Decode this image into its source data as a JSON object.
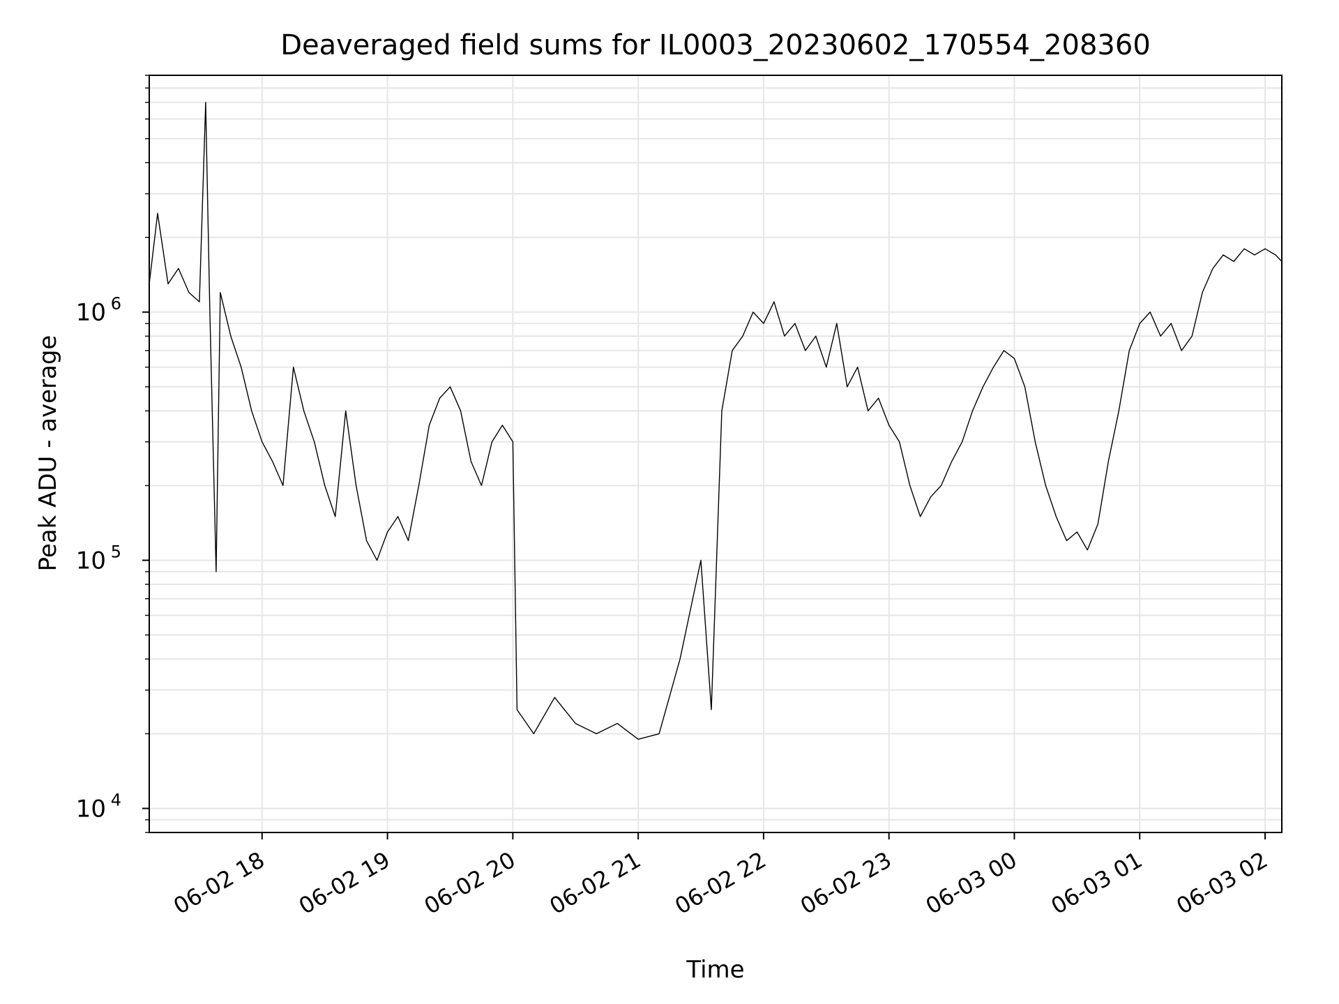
{
  "chart_data": {
    "type": "line",
    "title": "Deaveraged field sums for IL0003_20230602_170554_208360",
    "xlabel": "Time",
    "ylabel": "Peak ADU - average",
    "yscale": "log",
    "ylim": [
      8000,
      9000000
    ],
    "xlim": [
      "2023-06-02 17:06",
      "2023-06-03 02:08"
    ],
    "grid": true,
    "x_ticks": [
      "06-02 18",
      "06-02 19",
      "06-02 20",
      "06-02 21",
      "06-02 22",
      "06-02 23",
      "06-03 00",
      "06-03 01",
      "06-03 02"
    ],
    "y_ticks": [
      {
        "base": "10",
        "exp": "4",
        "value": 10000
      },
      {
        "base": "10",
        "exp": "5",
        "value": 100000
      },
      {
        "base": "10",
        "exp": "6",
        "value": 1000000
      }
    ],
    "line_color": "#000000",
    "grid_color": "#e6e6e6",
    "series": [
      {
        "points": [
          [
            "2023-06-02 17:06",
            1300000
          ],
          [
            "2023-06-02 17:10",
            2500000
          ],
          [
            "2023-06-02 17:15",
            1300000
          ],
          [
            "2023-06-02 17:20",
            1500000
          ],
          [
            "2023-06-02 17:25",
            1200000
          ],
          [
            "2023-06-02 17:30",
            1100000
          ],
          [
            "2023-06-02 17:33",
            7000000
          ],
          [
            "2023-06-02 17:35",
            1000000
          ],
          [
            "2023-06-02 17:38",
            90000
          ],
          [
            "2023-06-02 17:40",
            1200000
          ],
          [
            "2023-06-02 17:45",
            800000
          ],
          [
            "2023-06-02 17:50",
            600000
          ],
          [
            "2023-06-02 17:55",
            400000
          ],
          [
            "2023-06-02 18:00",
            300000
          ],
          [
            "2023-06-02 18:05",
            250000
          ],
          [
            "2023-06-02 18:10",
            200000
          ],
          [
            "2023-06-02 18:15",
            600000
          ],
          [
            "2023-06-02 18:20",
            400000
          ],
          [
            "2023-06-02 18:25",
            300000
          ],
          [
            "2023-06-02 18:30",
            200000
          ],
          [
            "2023-06-02 18:35",
            150000
          ],
          [
            "2023-06-02 18:40",
            400000
          ],
          [
            "2023-06-02 18:45",
            200000
          ],
          [
            "2023-06-02 18:50",
            120000
          ],
          [
            "2023-06-02 18:55",
            100000
          ],
          [
            "2023-06-02 19:00",
            130000
          ],
          [
            "2023-06-02 19:05",
            150000
          ],
          [
            "2023-06-02 19:10",
            120000
          ],
          [
            "2023-06-02 19:15",
            200000
          ],
          [
            "2023-06-02 19:20",
            350000
          ],
          [
            "2023-06-02 19:25",
            450000
          ],
          [
            "2023-06-02 19:30",
            500000
          ],
          [
            "2023-06-02 19:35",
            400000
          ],
          [
            "2023-06-02 19:40",
            250000
          ],
          [
            "2023-06-02 19:45",
            200000
          ],
          [
            "2023-06-02 19:50",
            300000
          ],
          [
            "2023-06-02 19:55",
            350000
          ],
          [
            "2023-06-02 20:00",
            300000
          ],
          [
            "2023-06-02 20:02",
            25000
          ],
          [
            "2023-06-02 20:10",
            20000
          ],
          [
            "2023-06-02 20:20",
            28000
          ],
          [
            "2023-06-02 20:30",
            22000
          ],
          [
            "2023-06-02 20:40",
            20000
          ],
          [
            "2023-06-02 20:50",
            22000
          ],
          [
            "2023-06-02 21:00",
            19000
          ],
          [
            "2023-06-02 21:10",
            20000
          ],
          [
            "2023-06-02 21:20",
            40000
          ],
          [
            "2023-06-02 21:30",
            100000
          ],
          [
            "2023-06-02 21:35",
            25000
          ],
          [
            "2023-06-02 21:40",
            400000
          ],
          [
            "2023-06-02 21:45",
            700000
          ],
          [
            "2023-06-02 21:50",
            800000
          ],
          [
            "2023-06-02 21:55",
            1000000
          ],
          [
            "2023-06-02 22:00",
            900000
          ],
          [
            "2023-06-02 22:05",
            1100000
          ],
          [
            "2023-06-02 22:10",
            800000
          ],
          [
            "2023-06-02 22:15",
            900000
          ],
          [
            "2023-06-02 22:20",
            700000
          ],
          [
            "2023-06-02 22:25",
            800000
          ],
          [
            "2023-06-02 22:30",
            600000
          ],
          [
            "2023-06-02 22:35",
            900000
          ],
          [
            "2023-06-02 22:40",
            500000
          ],
          [
            "2023-06-02 22:45",
            600000
          ],
          [
            "2023-06-02 22:50",
            400000
          ],
          [
            "2023-06-02 22:55",
            450000
          ],
          [
            "2023-06-02 23:00",
            350000
          ],
          [
            "2023-06-02 23:05",
            300000
          ],
          [
            "2023-06-02 23:10",
            200000
          ],
          [
            "2023-06-02 23:15",
            150000
          ],
          [
            "2023-06-02 23:20",
            180000
          ],
          [
            "2023-06-02 23:25",
            200000
          ],
          [
            "2023-06-02 23:30",
            250000
          ],
          [
            "2023-06-02 23:35",
            300000
          ],
          [
            "2023-06-02 23:40",
            400000
          ],
          [
            "2023-06-02 23:45",
            500000
          ],
          [
            "2023-06-02 23:50",
            600000
          ],
          [
            "2023-06-02 23:55",
            700000
          ],
          [
            "2023-06-03 00:00",
            650000
          ],
          [
            "2023-06-03 00:05",
            500000
          ],
          [
            "2023-06-03 00:10",
            300000
          ],
          [
            "2023-06-03 00:15",
            200000
          ],
          [
            "2023-06-03 00:20",
            150000
          ],
          [
            "2023-06-03 00:25",
            120000
          ],
          [
            "2023-06-03 00:30",
            130000
          ],
          [
            "2023-06-03 00:35",
            110000
          ],
          [
            "2023-06-03 00:40",
            140000
          ],
          [
            "2023-06-03 00:45",
            250000
          ],
          [
            "2023-06-03 00:50",
            400000
          ],
          [
            "2023-06-03 00:55",
            700000
          ],
          [
            "2023-06-03 01:00",
            900000
          ],
          [
            "2023-06-03 01:05",
            1000000
          ],
          [
            "2023-06-03 01:10",
            800000
          ],
          [
            "2023-06-03 01:15",
            900000
          ],
          [
            "2023-06-03 01:20",
            700000
          ],
          [
            "2023-06-03 01:25",
            800000
          ],
          [
            "2023-06-03 01:30",
            1200000
          ],
          [
            "2023-06-03 01:35",
            1500000
          ],
          [
            "2023-06-03 01:40",
            1700000
          ],
          [
            "2023-06-03 01:45",
            1600000
          ],
          [
            "2023-06-03 01:50",
            1800000
          ],
          [
            "2023-06-03 01:55",
            1700000
          ],
          [
            "2023-06-03 02:00",
            1800000
          ],
          [
            "2023-06-03 02:05",
            1700000
          ],
          [
            "2023-06-03 02:08",
            1600000
          ]
        ]
      }
    ]
  }
}
